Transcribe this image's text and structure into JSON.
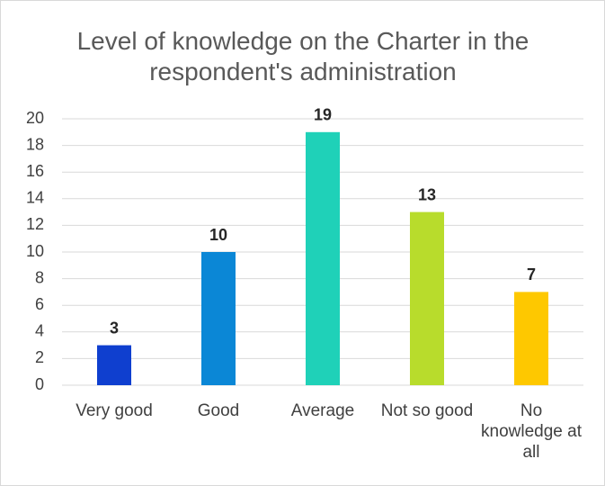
{
  "chart_data": {
    "type": "bar",
    "title": "Level of knowledge on the Charter in the respondent's administration",
    "categories": [
      "Very good",
      "Good",
      "Average",
      "Not so good",
      "No knowledge at all"
    ],
    "values": [
      3,
      10,
      19,
      13,
      7
    ],
    "colors": [
      "#0f3fcf",
      "#0b87d6",
      "#1fd1b8",
      "#b8dc2c",
      "#fec800"
    ],
    "ylim": [
      0,
      20
    ],
    "yticks": [
      0,
      2,
      4,
      6,
      8,
      10,
      12,
      14,
      16,
      18,
      20
    ],
    "grid": true
  }
}
